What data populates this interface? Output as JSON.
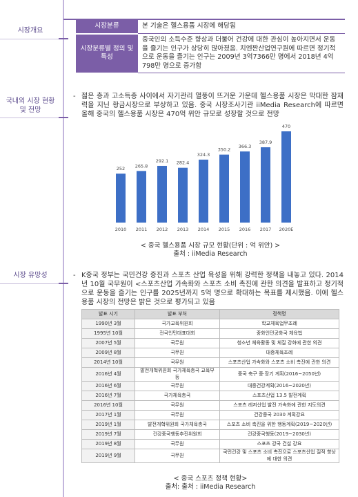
{
  "sidebar": [
    "시장개요",
    "국내외 시장 현황 및 전망",
    "시장 유망성"
  ],
  "overview_table": {
    "rows": [
      [
        "시장분류",
        "본 기술은 헬스용품 시장에 해당됨"
      ],
      [
        "시장분류별 정의 및 특성",
        "중국인의 소득수준 향상과 더불어 건강에 대한 관심이 높아지면서 운동을 즐기는 인구가 상당히 많아졌음. 치엔짠산업연구원에 따르면 정기적으로 운동을 즐기는 인구는 2009년 3억7366만 명에서 2018년 4억798만 명으로 증가함"
      ]
    ]
  },
  "section2": {
    "bullet": "-",
    "text": "젊은 층과 고소득층 사이에서 자기관리 열풍이 뜨거운 가운데 헬스용품 시장은 막대한 잠재력을 지닌 황금시장으로 부상하고 있음. 중국 시장조사기관 iiMedia Research에 따르면 올해 중국의 헬스용품 시장은 470억 위안 규모로 성장할 것으로 전망"
  },
  "chart_data": {
    "type": "bar",
    "categories": [
      "2010",
      "2011",
      "2012",
      "2013",
      "2014",
      "2015",
      "2016",
      "2017",
      "2020E"
    ],
    "values": [
      252,
      265.8,
      292.1,
      282.4,
      324.3,
      350.2,
      366.3,
      387.9,
      470
    ],
    "color": "#3d6fc6",
    "caption": "< 중국 헬스용품 시장 규모 현황(단위 : 억 위안) >",
    "source": "출처 : iiMedia Research"
  },
  "section3": {
    "bullet": "-",
    "text": "K중국 정부는 국민건강 증진과 스포츠 산업 육성을 위해 강력한 정책을 내놓고 있다. 2014년 10월 국무원이 <스포츠산업 가속화와 스포츠 소비 촉진에 관한 의견을 발표하고 정기적으로 운동을 즐기는 인구를 2025년까지 5억 명으로 확대하는 목표를 제시했음. 이에 헬스용품 시장의 전망은 밝은 것으로 평가되고 있음"
  },
  "policy_table": {
    "header": [
      "발표 시기",
      "발표 부처",
      "정책명"
    ],
    "rows": [
      [
        "1990년 3월",
        "국가교육위원회",
        "학교체육업무조례"
      ],
      [
        "1995년 10월",
        "전국인민대표대회",
        "중화인민공화국 체육법"
      ],
      [
        "2007년 5월",
        "국무원",
        "청소년 체육활동 및 체질 강화에 관한 의견"
      ],
      [
        "2009년 8월",
        "국무원",
        "대중체육조례"
      ],
      [
        "2014년 10월",
        "국무원",
        "스포츠산업 가속화와 스포츠 소비 촉진에 관한 의견"
      ],
      [
        "2016년 4월",
        "발전개혁위원회 국가체육총국 교육부 등",
        "중국 축구 중·장기 계획(2016~2050년)"
      ],
      [
        "2016년 6월",
        "국무원",
        "대중건강계획(2016~2020년)"
      ],
      [
        "2016년 7월",
        "국가체육총국",
        "스포츠산업 13.5 발전계획"
      ],
      [
        "2016년 10월",
        "국무원",
        "스포츠 레저산업 발전 가속화에 관한 지도의견"
      ],
      [
        "2017년 1월",
        "국무원",
        "건강중국 2030 계획강요"
      ],
      [
        "2019년 1월",
        "발전개혁위원회 국가체육총국",
        "스포츠 소비 촉진을 위한 행동계획(2019~2020년)"
      ],
      [
        "2019년 7월",
        "건강중국행동추진위원회",
        "건강중국행동(2019~2030년)"
      ],
      [
        "2019년 8월",
        "국무원",
        "스포츠 강국 건설 강요"
      ],
      [
        "2019년 9월",
        "국무원",
        "국민건강 및 스포츠 소비 촉진으로 스포츠산업 질적 향상에 대한 의견"
      ]
    ],
    "caption": "< 중국 스포츠 정책 현황>",
    "source": "출처: 출처 : iiMedia Research"
  }
}
